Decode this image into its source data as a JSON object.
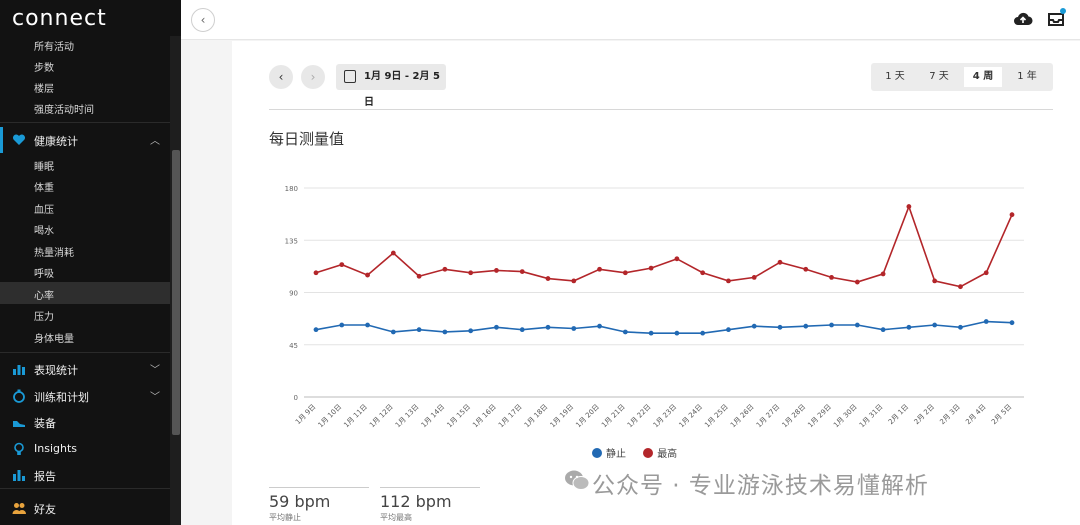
{
  "app": {
    "logo": "connect"
  },
  "sidebar": {
    "sub_top": [
      "所有活动",
      "步数",
      "楼层",
      "强度活动时间"
    ],
    "health": {
      "label": "健康统计",
      "items": [
        "睡眠",
        "体重",
        "血压",
        "喝水",
        "热量消耗",
        "呼吸",
        "心率",
        "压力",
        "身体电量"
      ],
      "active": "心率"
    },
    "sections": [
      {
        "label": "表现统计",
        "icon": "bar-chart-icon"
      },
      {
        "label": "训练和计划",
        "icon": "stopwatch-icon"
      },
      {
        "label": "装备",
        "icon": "shoe-icon"
      },
      {
        "label": "Insights",
        "icon": "lightbulb-icon"
      },
      {
        "label": "报告",
        "icon": "report-icon"
      },
      {
        "label": "好友",
        "icon": "friends-icon"
      }
    ]
  },
  "toolbar": {
    "date_range": "1月 9日 - 2月 5日",
    "prev": "‹",
    "next": "›"
  },
  "periods": [
    "1 天",
    "7 天",
    "4 周",
    "1 年"
  ],
  "active_period": "4 周",
  "chart_title": "每日测量值",
  "colors": {
    "resting": "#2169b3",
    "max": "#b3262a",
    "accent": "#1a9ad6"
  },
  "chart_data": {
    "type": "line",
    "categories": [
      "1月 9日",
      "1月 10日",
      "1月 11日",
      "1月 12日",
      "1月 13日",
      "1月 14日",
      "1月 15日",
      "1月 16日",
      "1月 17日",
      "1月 18日",
      "1月 19日",
      "1月 20日",
      "1月 21日",
      "1月 22日",
      "1月 23日",
      "1月 24日",
      "1月 25日",
      "1月 26日",
      "1月 27日",
      "1月 28日",
      "1月 29日",
      "1月 30日",
      "1月 31日",
      "2月 1日",
      "2月 2日",
      "2月 3日",
      "2月 4日",
      "2月 5日"
    ],
    "yticks": [
      0,
      45,
      90,
      135,
      180
    ],
    "ylim": [
      0,
      180
    ],
    "series": [
      {
        "name": "静止",
        "values": [
          58,
          62,
          62,
          56,
          58,
          56,
          57,
          60,
          58,
          60,
          59,
          61,
          56,
          55,
          55,
          55,
          58,
          61,
          60,
          61,
          62,
          62,
          58,
          60,
          62,
          60,
          65,
          64
        ]
      },
      {
        "name": "最高",
        "values": [
          107,
          114,
          105,
          124,
          104,
          110,
          107,
          109,
          108,
          102,
          100,
          110,
          107,
          111,
          119,
          107,
          100,
          103,
          116,
          110,
          103,
          99,
          106,
          164,
          100,
          95,
          107,
          157
        ]
      }
    ]
  },
  "stats": [
    {
      "value": "59 bpm",
      "label": "平均静止"
    },
    {
      "value": "112 bpm",
      "label": "平均最高"
    }
  ],
  "watermark": "公众号 · 专业游泳技术易懂解析"
}
